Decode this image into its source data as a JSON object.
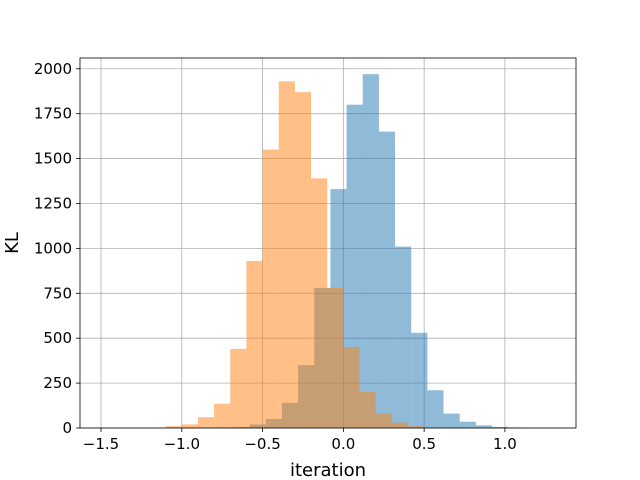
{
  "chart_data": {
    "type": "bar",
    "subtype": "overlapping-histogram",
    "title": "",
    "xlabel": "iteration",
    "ylabel": "KL",
    "xlim": [
      -1.63,
      1.44
    ],
    "ylim": [
      0,
      2060
    ],
    "xticks": [
      -1.5,
      -1.0,
      -0.5,
      0.0,
      0.5,
      1.0
    ],
    "xtick_labels": [
      "−1.5",
      "−1.0",
      "−0.5",
      "0.0",
      "0.5",
      "1.0"
    ],
    "yticks": [
      0,
      250,
      500,
      750,
      1000,
      1250,
      1500,
      1750,
      2000
    ],
    "ytick_labels": [
      "0",
      "250",
      "500",
      "750",
      "1000",
      "1250",
      "1500",
      "1750",
      "2000"
    ],
    "grid": true,
    "legend": "none",
    "series": [
      {
        "color": "#1f77b4",
        "opacity": 0.5,
        "bin_edges": [
          -1.48,
          -1.38,
          -1.28,
          -1.18,
          -1.08,
          -0.98,
          -0.88,
          -0.78,
          -0.68,
          -0.58,
          -0.48,
          -0.38,
          -0.28,
          -0.18,
          -0.08,
          0.02,
          0.12,
          0.22,
          0.32,
          0.42,
          0.52,
          0.62,
          0.72,
          0.82,
          0.92,
          1.02,
          1.12,
          1.22,
          1.32
        ],
        "values": [
          1,
          0,
          0,
          0,
          0,
          0,
          0,
          2,
          5,
          20,
          50,
          140,
          350,
          780,
          1330,
          1800,
          1970,
          1650,
          1010,
          530,
          210,
          80,
          35,
          15,
          6,
          3,
          1,
          1
        ]
      },
      {
        "color": "#ff7f0e",
        "opacity": 0.5,
        "bin_edges": [
          -1.1,
          -1.0,
          -0.9,
          -0.8,
          -0.7,
          -0.6,
          -0.5,
          -0.4,
          -0.3,
          -0.2,
          -0.1,
          0.0,
          0.1,
          0.2,
          0.3,
          0.4,
          0.5
        ],
        "values": [
          10,
          20,
          60,
          135,
          440,
          930,
          1550,
          1930,
          1870,
          1390,
          780,
          450,
          200,
          80,
          30,
          10
        ]
      }
    ]
  },
  "axes": {
    "xlabel": "iteration",
    "ylabel": "KL"
  }
}
